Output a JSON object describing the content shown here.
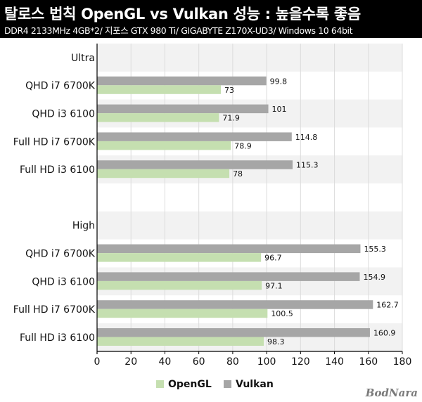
{
  "header": {
    "title": "탈로스 법칙 OpenGL vs Vulkan 성능 : 높을수록 좋음",
    "subtitle": "DDR4 2133MHz 4GB*2/ 지포스 GTX 980 Ti/ GIGABYTE Z170X-UD3/ Windows 10 64bit"
  },
  "logo": "BodNara",
  "colors": {
    "opengl": "#c5dfb0",
    "vulkan": "#a6a6a6",
    "band": "#f2f2f2"
  },
  "chart_data": {
    "type": "bar",
    "orientation": "horizontal",
    "title": "탈로스 법칙 OpenGL vs Vulkan 성능 : 높을수록 좋음",
    "groups": [
      {
        "label": "Ultra",
        "categories": [
          "QHD i7 6700K",
          "QHD i3 6100",
          "Full HD i7 6700K",
          "Full HD i3 6100"
        ],
        "series": [
          {
            "name": "Vulkan",
            "values": [
              99.8,
              101,
              114.8,
              115.3
            ]
          },
          {
            "name": "OpenGL",
            "values": [
              73,
              71.9,
              78.9,
              78
            ]
          }
        ]
      },
      {
        "label": "High",
        "categories": [
          "QHD i7 6700K",
          "QHD i3 6100",
          "Full HD i7 6700K",
          "Full HD i3 6100"
        ],
        "series": [
          {
            "name": "Vulkan",
            "values": [
              155.3,
              154.9,
              162.7,
              160.9
            ]
          },
          {
            "name": "OpenGL",
            "values": [
              96.7,
              97.1,
              100.5,
              98.3
            ]
          }
        ]
      }
    ],
    "xlim": [
      0,
      180
    ],
    "xticks": [
      0,
      20,
      40,
      60,
      80,
      100,
      120,
      140,
      160,
      180
    ],
    "legend": [
      "OpenGL",
      "Vulkan"
    ],
    "legend_position": "bottom",
    "grid": true
  }
}
